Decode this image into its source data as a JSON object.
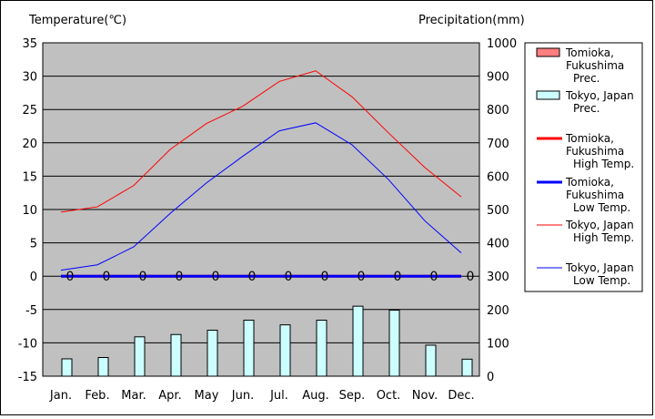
{
  "chart_data": {
    "type": "bar+line",
    "title": "",
    "ylabel_left": "Temperature(℃)",
    "ylabel_right": "Precipitation(mm)",
    "ylim_left": [
      -15,
      35
    ],
    "yticks_left": [
      35,
      30,
      25,
      20,
      15,
      10,
      5,
      0,
      -5,
      -10,
      -15
    ],
    "ylim_right": [
      0,
      1000
    ],
    "yticks_right": [
      1000,
      900,
      800,
      700,
      600,
      500,
      400,
      300,
      200,
      100,
      0
    ],
    "categories": [
      "Jan.",
      "Feb.",
      "Mar.",
      "Apr.",
      "May",
      "Jun.",
      "Jul.",
      "Aug.",
      "Sep.",
      "Oct.",
      "Nov.",
      "Dec."
    ],
    "grid": true,
    "legend_position": "right",
    "bar_series": [
      {
        "name": "Tomioka, Fukushima Prec.",
        "legend_lines": [
          "Tomioka,",
          "Fukushima",
          "Prec."
        ],
        "color": "#ff7f7f",
        "values": [
          0,
          0,
          0,
          0,
          0,
          0,
          0,
          0,
          0,
          0,
          0,
          0
        ]
      },
      {
        "name": "Tokyo, Japan Prec.",
        "legend_lines": [
          "Tokyo, Japan",
          "Prec."
        ],
        "color": "#ccffff",
        "values": [
          52,
          56,
          118,
          125,
          138,
          168,
          154,
          168,
          210,
          198,
          93,
          51
        ]
      }
    ],
    "line_series": [
      {
        "name": "Tomioka, Fukushima High Temp.",
        "legend_lines": [
          "Tomioka,",
          "Fukushima",
          "High Temp."
        ],
        "color": "#ff0000",
        "width": "thick",
        "values": [
          0,
          0,
          0,
          0,
          0,
          0,
          0,
          0,
          0,
          0,
          0,
          0
        ]
      },
      {
        "name": "Tomioka, Fukushima Low Temp.",
        "legend_lines": [
          "Tomioka,",
          "Fukushima",
          "Low Temp."
        ],
        "color": "#0000ff",
        "width": "thick",
        "values": [
          0,
          0,
          0,
          0,
          0,
          0,
          0,
          0,
          0,
          0,
          0,
          0
        ]
      },
      {
        "name": "Tokyo, Japan High Temp.",
        "legend_lines": [
          "Tokyo, Japan",
          "High Temp."
        ],
        "color": "#ff0000",
        "width": "thin",
        "values": [
          9.6,
          10.4,
          13.6,
          19.0,
          22.9,
          25.5,
          29.2,
          30.8,
          26.9,
          21.5,
          16.3,
          11.9
        ]
      },
      {
        "name": "Tokyo, Japan Low Temp.",
        "legend_lines": [
          "Tokyo, Japan",
          "Low Temp."
        ],
        "color": "#0000ff",
        "width": "thin",
        "values": [
          0.9,
          1.7,
          4.4,
          9.4,
          14.0,
          18.0,
          21.8,
          23.0,
          19.7,
          14.5,
          8.3,
          3.5
        ]
      }
    ],
    "zero_labels": [
      "0",
      "0",
      "0",
      "0",
      "0",
      "0",
      "0",
      "0",
      "0",
      "0",
      "0",
      "0"
    ],
    "colors": {
      "plot_background": "#c0c0c0",
      "gridline": "#000000"
    }
  }
}
